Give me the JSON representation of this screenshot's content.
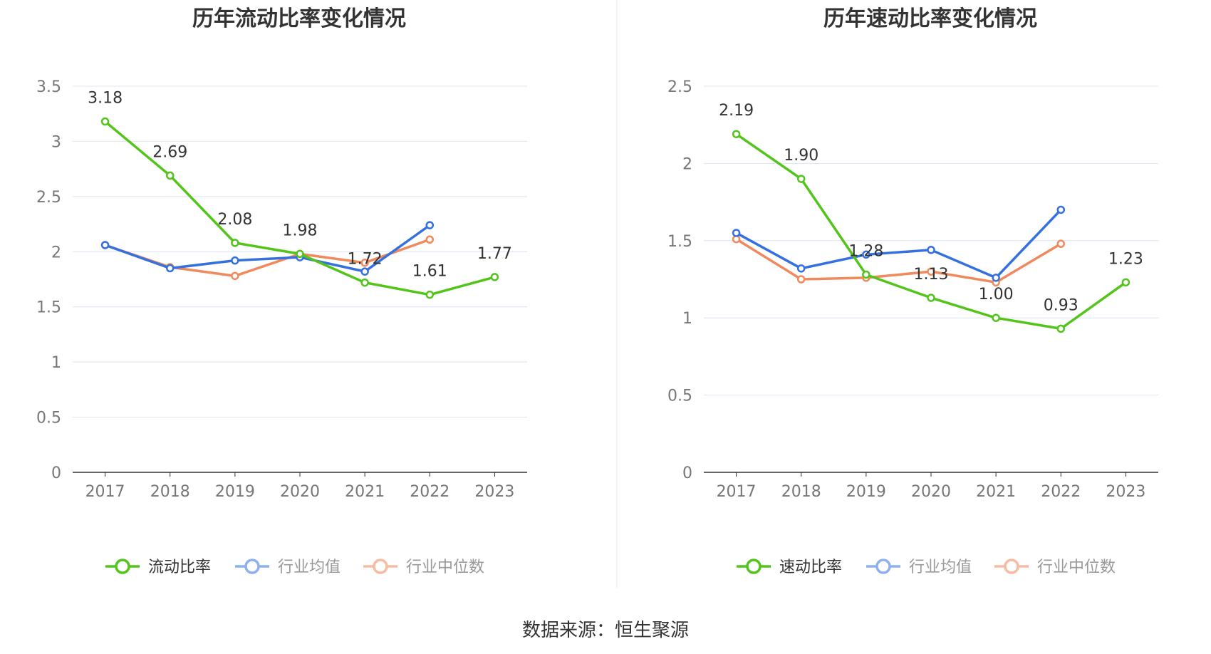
{
  "colors": {
    "primary": "#52c41a",
    "avg": "#3470e0",
    "median": "#f08a5d",
    "avg_legend": "#8eb0ef",
    "median_legend": "#f7bba3",
    "grid": "#dce3f0",
    "axis": "#333333"
  },
  "source": "数据来源：恒生聚源",
  "chart_data": [
    {
      "type": "line",
      "title": "历年流动比率变化情况",
      "categories": [
        "2017",
        "2018",
        "2019",
        "2020",
        "2021",
        "2022",
        "2023"
      ],
      "ylim": [
        0,
        3.5
      ],
      "yticks": [
        "0",
        "0.5",
        "1",
        "1.5",
        "2",
        "2.5",
        "3",
        "3.5"
      ],
      "series": [
        {
          "name": "流动比率",
          "values": [
            3.18,
            2.69,
            2.08,
            1.98,
            1.72,
            1.61,
            1.77
          ],
          "labels": [
            "3.18",
            "2.69",
            "2.08",
            "1.98",
            "1.72",
            "1.61",
            "1.77"
          ]
        },
        {
          "name": "行业均值",
          "values": [
            2.06,
            1.85,
            1.92,
            1.95,
            1.82,
            2.24,
            null
          ]
        },
        {
          "name": "行业中位数",
          "values": [
            2.06,
            1.86,
            1.78,
            1.98,
            1.9,
            2.11,
            null
          ]
        }
      ]
    },
    {
      "type": "line",
      "title": "历年速动比率变化情况",
      "categories": [
        "2017",
        "2018",
        "2019",
        "2020",
        "2021",
        "2022",
        "2023"
      ],
      "ylim": [
        0,
        2.5
      ],
      "yticks": [
        "0",
        "0.5",
        "1",
        "1.5",
        "2",
        "2.5"
      ],
      "series": [
        {
          "name": "速动比率",
          "values": [
            2.19,
            1.9,
            1.28,
            1.13,
            1.0,
            0.93,
            1.23
          ],
          "labels": [
            "2.19",
            "1.90",
            "1.28",
            "1.13",
            "1.00",
            "0.93",
            "1.23"
          ]
        },
        {
          "name": "行业均值",
          "values": [
            1.55,
            1.32,
            1.41,
            1.44,
            1.26,
            1.7,
            null
          ]
        },
        {
          "name": "行业中位数",
          "values": [
            1.51,
            1.25,
            1.26,
            1.3,
            1.23,
            1.48,
            null
          ]
        }
      ]
    }
  ]
}
